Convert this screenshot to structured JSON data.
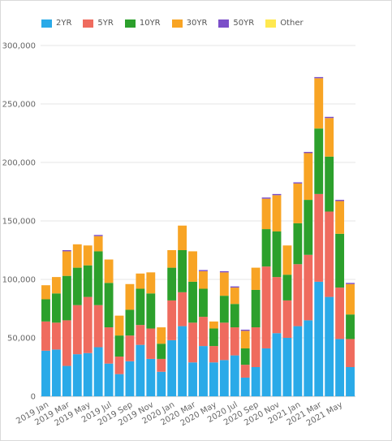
{
  "chart_data": {
    "type": "bar",
    "stacked": true,
    "categories": [
      "2019 Jan",
      "2019 Feb",
      "2019 Mar",
      "2019 Apr",
      "2019 May",
      "2019 Jun",
      "2019 Jul",
      "2019 Aug",
      "2019 Sep",
      "2019 Oct",
      "2019 Nov",
      "2019 Dec",
      "2020 Jan",
      "2020 Feb",
      "2020 Mar",
      "2020 Apr",
      "2020 May",
      "2020 Jun",
      "2020 Jul",
      "2020 Aug",
      "2020 Sep",
      "2020 Oct",
      "2020 Nov",
      "2020 Dec",
      "2021 Jan",
      "2021 Feb",
      "2021 Mar",
      "2021 Apr",
      "2021 May",
      "2021 Jun"
    ],
    "tick_labels": [
      "2019 Jan",
      "2019 Mar",
      "2019 May",
      "2019 Jul",
      "2019 Sep",
      "2019 Nov",
      "2020 Jan",
      "2020 Mar",
      "2020 May",
      "2020 Jul",
      "2020 Sep",
      "2020 Nov",
      "2021 Jan",
      "2021 Mar",
      "2021 May"
    ],
    "series": [
      {
        "name": "2YR",
        "color": "#2aaae8",
        "values": [
          39000,
          40000,
          26000,
          36000,
          37000,
          42000,
          28000,
          19000,
          30000,
          44000,
          32000,
          21000,
          48000,
          60000,
          29000,
          43000,
          29000,
          31000,
          35000,
          16000,
          25000,
          41000,
          54000,
          50000,
          60000,
          65000,
          98000,
          85000,
          49000,
          25000
        ]
      },
      {
        "name": "5YR",
        "color": "#ef6b5e",
        "values": [
          25000,
          23000,
          39000,
          42000,
          48000,
          36000,
          31000,
          15000,
          22000,
          17000,
          26000,
          11000,
          34000,
          29000,
          34000,
          25000,
          14000,
          32000,
          24000,
          11000,
          34000,
          70000,
          48000,
          32000,
          53000,
          56000,
          75000,
          73000,
          44000,
          24000
        ]
      },
      {
        "name": "10YR",
        "color": "#2ca02c",
        "values": [
          19000,
          25000,
          38000,
          32000,
          27000,
          46000,
          38000,
          18000,
          22000,
          31000,
          30000,
          13000,
          28000,
          36000,
          35000,
          24000,
          15000,
          23000,
          20000,
          14000,
          32000,
          32000,
          39000,
          22000,
          35000,
          47000,
          56000,
          47000,
          46000,
          21000
        ]
      },
      {
        "name": "30YR",
        "color": "#f8a424",
        "values": [
          12000,
          14000,
          21000,
          20000,
          17000,
          13000,
          20000,
          17000,
          22000,
          13000,
          18000,
          14000,
          15000,
          21000,
          26000,
          15000,
          6000,
          20000,
          14000,
          15000,
          19000,
          26000,
          31000,
          25000,
          34000,
          40000,
          43000,
          33000,
          28000,
          26000
        ]
      },
      {
        "name": "50YR",
        "color": "#7b4fc9",
        "values": [
          0,
          0,
          1000,
          0,
          0,
          1000,
          0,
          0,
          0,
          0,
          0,
          0,
          0,
          0,
          0,
          1000,
          0,
          1000,
          1000,
          1000,
          0,
          1000,
          1000,
          0,
          1000,
          1000,
          1000,
          1000,
          1000,
          1000
        ]
      },
      {
        "name": "Other",
        "color": "#ffe84f",
        "values": [
          0,
          0,
          0,
          0,
          0,
          0,
          0,
          0,
          0,
          0,
          0,
          0,
          0,
          0,
          0,
          0,
          0,
          0,
          0,
          0,
          0,
          0,
          0,
          0,
          0,
          0,
          0,
          0,
          0,
          0
        ]
      }
    ],
    "ylim": [
      0,
      300000
    ],
    "yticks": [
      0,
      50000,
      100000,
      150000,
      200000,
      250000,
      300000
    ],
    "ytick_labels": [
      "0",
      "50,000",
      "100,000",
      "150,000",
      "200,000",
      "250,000",
      "300,000"
    ],
    "grid": true,
    "legend_position": "top-left"
  }
}
